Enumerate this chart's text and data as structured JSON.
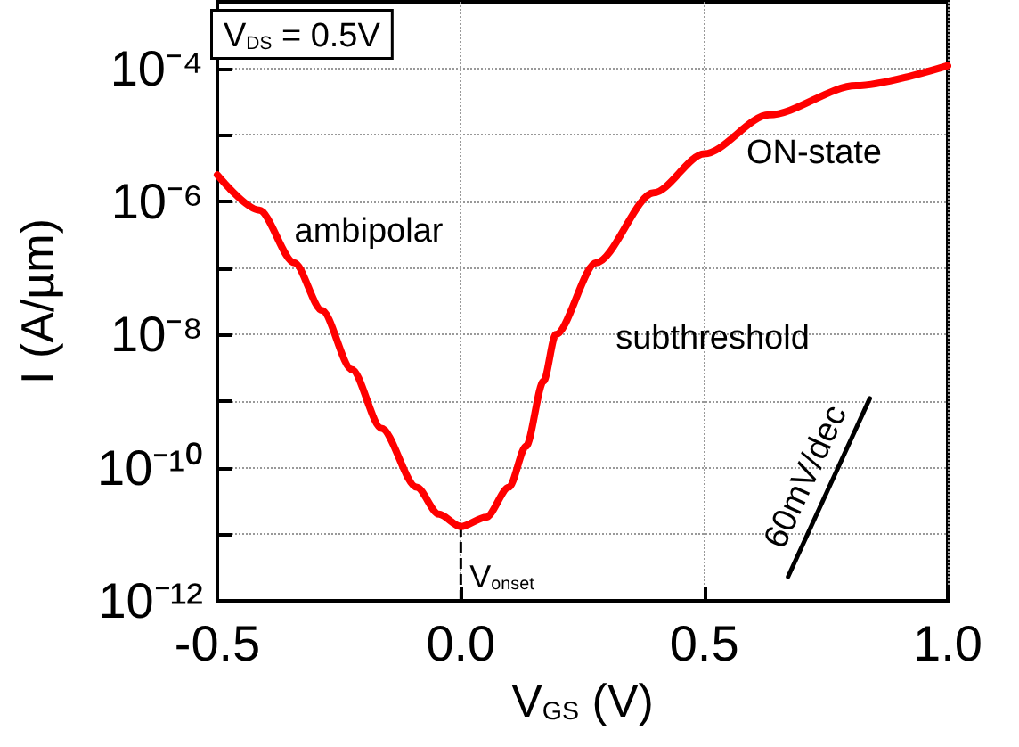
{
  "chart_data": {
    "type": "line",
    "xlabel": "V$_{GS}$ (V)",
    "ylabel": "I (A/µm)",
    "log": "y",
    "grid": true,
    "marker": "none",
    "line_style": "solid",
    "xlim": [
      -0.5,
      1.0
    ],
    "xticks": [
      {
        "value": -0.5,
        "label": "-0.5"
      },
      {
        "value": 0,
        "label": "0.0"
      },
      {
        "value": 0.5,
        "label": "0.5"
      },
      {
        "value": 1.0,
        "label": "1.0"
      }
    ],
    "ylim": [
      1e-12,
      0.001
    ],
    "yticks": [
      {
        "value": 1e-12,
        "label": "10⁻¹²"
      },
      {
        "value": 1e-11,
        "label": null
      },
      {
        "value": 1e-10,
        "label": "10⁻¹⁰"
      },
      {
        "value": 1e-09,
        "label": null
      },
      {
        "value": 1e-08,
        "label": "10⁻⁸"
      },
      {
        "value": 1e-07,
        "label": null
      },
      {
        "value": 1e-06,
        "label": "10⁻⁶"
      },
      {
        "value": 1e-05,
        "label": null
      },
      {
        "value": 0.0001,
        "label": "10⁻⁴"
      }
    ],
    "series": [
      {
        "color": "#ff0000",
        "x": [
          -0.5,
          -0.414,
          -0.342,
          -0.285,
          -0.224,
          -0.163,
          -0.091,
          -0.045,
          0.0,
          0.052,
          0.099,
          0.134,
          0.17,
          0.195,
          0.278,
          0.396,
          0.5,
          0.633,
          0.812,
          1.0
        ],
        "values": [
          2.5e-06,
          7.4e-07,
          1.2e-07,
          2.3e-08,
          3e-09,
          3.9e-10,
          5.1e-11,
          2e-11,
          1.3e-11,
          1.8e-11,
          5.1e-11,
          2.1e-10,
          2e-09,
          1e-08,
          1.2e-07,
          1.35e-06,
          5.2e-06,
          2e-05,
          5.5e-05,
          0.00011
        ]
      },
      {
        "name": "60mV/dec",
        "color": "#000000",
        "x": [
          0.672,
          0.84
        ],
        "values": [
          2.3e-12,
          1.1e-09
        ]
      }
    ],
    "ref_lines": [
      {
        "axis": "x",
        "value": 0,
        "label": "V$_{onset}$",
        "line_style": "dashed",
        "color": "#000000"
      }
    ],
    "annotations": [
      "V$_{DS}$ = 0.5V",
      "ambipolar",
      "subthreshold",
      "ON-state"
    ]
  }
}
